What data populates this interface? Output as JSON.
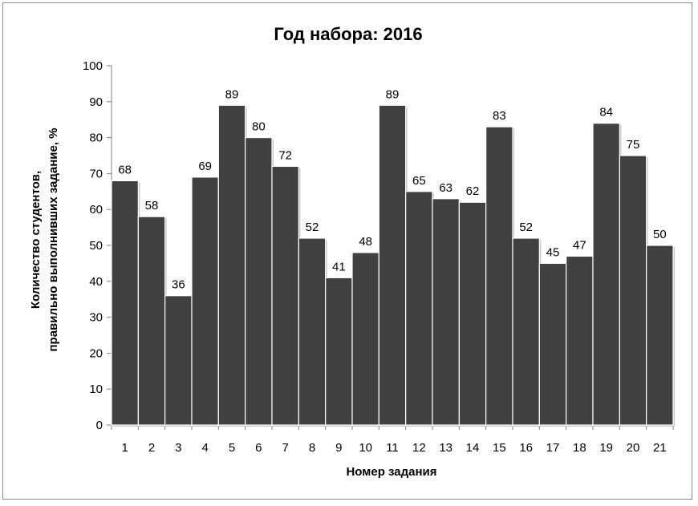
{
  "chart_data": {
    "type": "bar",
    "title": "Год набора: 2016",
    "xlabel": "Номер задания",
    "ylabel_lines": [
      "Количество студентов,",
      "правильно выполнивших задание, %"
    ],
    "categories": [
      "1",
      "2",
      "3",
      "4",
      "5",
      "6",
      "7",
      "8",
      "9",
      "10",
      "11",
      "12",
      "13",
      "14",
      "15",
      "16",
      "17",
      "18",
      "19",
      "20",
      "21"
    ],
    "values": [
      68,
      58,
      36,
      69,
      89,
      80,
      72,
      52,
      41,
      48,
      89,
      65,
      63,
      62,
      83,
      52,
      45,
      47,
      84,
      75,
      50
    ],
    "ylim": [
      0,
      100
    ],
    "yticks": [
      0,
      10,
      20,
      30,
      40,
      50,
      60,
      70,
      80,
      90,
      100
    ],
    "grid": false,
    "legend": "none",
    "bar_color": "#404040",
    "bar_edge_color": "#ffffff"
  }
}
